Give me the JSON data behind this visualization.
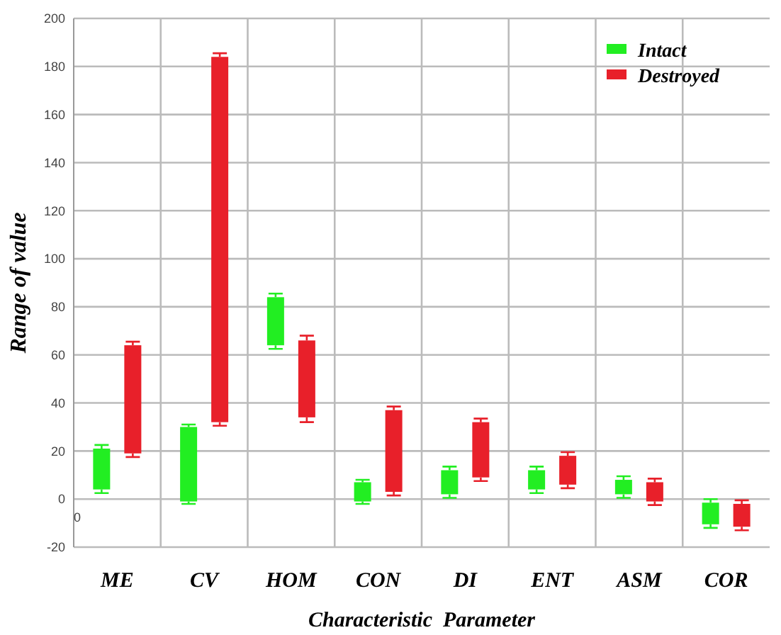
{
  "chart_data": {
    "type": "bar",
    "xlabel": "Characteristic  Parameter",
    "ylabel": "Range of value",
    "categories": [
      "ME",
      "CV",
      "HOM",
      "CON",
      "DI",
      "ENT",
      "ASM",
      "COR"
    ],
    "series": [
      {
        "name": "Intact",
        "color": "#22ee22",
        "base": [
          4,
          -1,
          64,
          -1,
          2,
          4,
          2,
          -10.5
        ],
        "values": [
          17,
          31,
          20,
          8,
          10,
          8,
          6,
          9
        ],
        "errors": [
          1.5,
          1,
          1.5,
          1,
          1.5,
          1.5,
          1.5,
          1.5
        ]
      },
      {
        "name": "Destroyed",
        "color": "#e8202a",
        "base": [
          19,
          32,
          34,
          3,
          9,
          6,
          -1,
          -11.5
        ],
        "values": [
          45,
          152,
          32,
          34,
          23,
          12,
          8,
          9.5
        ],
        "errors": [
          1.5,
          1.5,
          2,
          1.5,
          1.5,
          1.5,
          1.5,
          1.5
        ]
      }
    ],
    "ylim": [
      -20,
      200
    ],
    "yticks": [
      -20,
      0,
      20,
      40,
      60,
      80,
      100,
      120,
      140,
      160,
      180,
      200
    ],
    "grid": true,
    "legend": "top right",
    "annotations": [
      "0"
    ]
  }
}
